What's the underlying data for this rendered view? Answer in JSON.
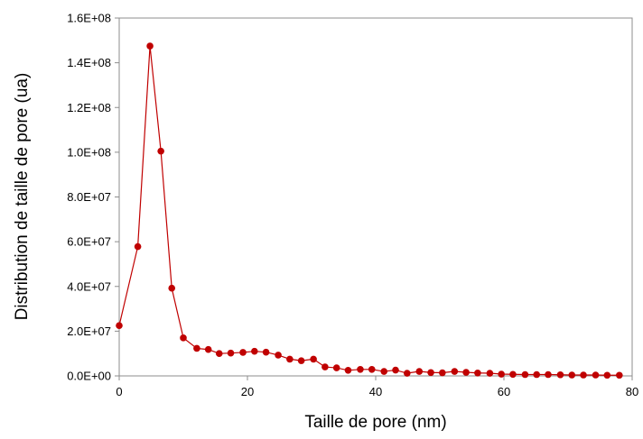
{
  "chart_data": {
    "type": "scatter",
    "title": "",
    "xlabel": "Taille de pore (nm)",
    "ylabel": "Distribution de taille de pore (ua)",
    "xlim": [
      0,
      80
    ],
    "ylim": [
      0,
      160000000
    ],
    "xticks": [
      0,
      20,
      40,
      60,
      80
    ],
    "xtick_labels": [
      "0",
      "20",
      "40",
      "60",
      "80"
    ],
    "yticks": [
      0,
      20000000,
      40000000,
      60000000,
      80000000,
      100000000,
      120000000,
      140000000,
      160000000
    ],
    "ytick_labels": [
      "0.0E+00",
      "2.0E+07",
      "4.0E+07",
      "6.0E+07",
      "8.0E+07",
      "1.0E+08",
      "1.2E+08",
      "1.4E+08",
      "1.6E+08"
    ],
    "grid": false,
    "legend": "none",
    "series": [
      {
        "color": "#c00000",
        "marker": "circle",
        "line": true,
        "x": [
          0,
          2.9,
          4.8,
          6.5,
          8.2,
          10.0,
          12.1,
          13.9,
          15.6,
          17.4,
          19.3,
          21.1,
          22.9,
          24.8,
          26.6,
          28.4,
          30.3,
          32.1,
          33.9,
          35.7,
          37.6,
          39.4,
          41.3,
          43.1,
          44.9,
          46.8,
          48.6,
          50.4,
          52.3,
          54.1,
          55.9,
          57.8,
          59.6,
          61.4,
          63.3,
          65.1,
          66.9,
          68.8,
          70.6,
          72.4,
          74.3,
          76.1,
          78.0
        ],
        "y": [
          22500000,
          57800000,
          147500000,
          100500000,
          39200000,
          17000000,
          12300000,
          11800000,
          10000000,
          10200000,
          10500000,
          11000000,
          10600000,
          9300000,
          7500000,
          6800000,
          7500000,
          4000000,
          3600000,
          2500000,
          2900000,
          2900000,
          2000000,
          2600000,
          1200000,
          2000000,
          1500000,
          1400000,
          2000000,
          1600000,
          1300000,
          1200000,
          800000,
          700000,
          600000,
          600000,
          600000,
          500000,
          400000,
          400000,
          400000,
          300000,
          300000
        ]
      }
    ]
  }
}
